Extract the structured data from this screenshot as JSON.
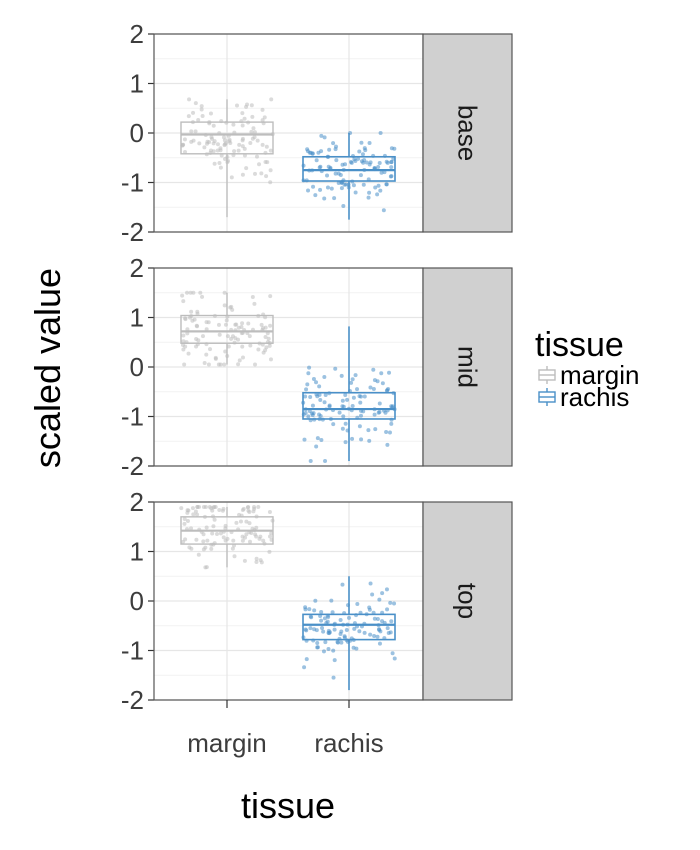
{
  "chart_data": {
    "type": "box",
    "xlabel": "tissue",
    "ylabel": "scaled value",
    "categories": [
      "margin",
      "rachis"
    ],
    "ylim": [
      -2,
      2
    ],
    "yticks": [
      "2",
      "1",
      "0",
      "-1",
      "-2"
    ],
    "grid": true,
    "legend": {
      "title": "tissue",
      "position": "right",
      "items": [
        {
          "label": "margin",
          "color": "#bdbdbd"
        },
        {
          "label": "rachis",
          "color": "#4a90c8"
        }
      ]
    },
    "panels": [
      {
        "label": "base",
        "boxes": [
          {
            "category": "margin",
            "min": -1.7,
            "q1": -0.42,
            "median": -0.03,
            "q3": 0.22,
            "max": 0.68
          },
          {
            "category": "rachis",
            "min": -1.75,
            "q1": -0.97,
            "median": -0.75,
            "q3": -0.48,
            "max": 0.0
          }
        ]
      },
      {
        "label": "mid",
        "boxes": [
          {
            "category": "margin",
            "min": 0.05,
            "q1": 0.48,
            "median": 0.72,
            "q3": 1.04,
            "max": 1.5
          },
          {
            "category": "rachis",
            "min": -1.9,
            "q1": -1.05,
            "median": -0.85,
            "q3": -0.52,
            "max": 0.82
          }
        ]
      },
      {
        "label": "top",
        "boxes": [
          {
            "category": "margin",
            "min": 0.68,
            "q1": 1.15,
            "median": 1.42,
            "q3": 1.7,
            "max": 1.9
          },
          {
            "category": "rachis",
            "min": -1.8,
            "q1": -0.78,
            "median": -0.48,
            "q3": -0.27,
            "max": 0.5
          }
        ]
      }
    ]
  }
}
